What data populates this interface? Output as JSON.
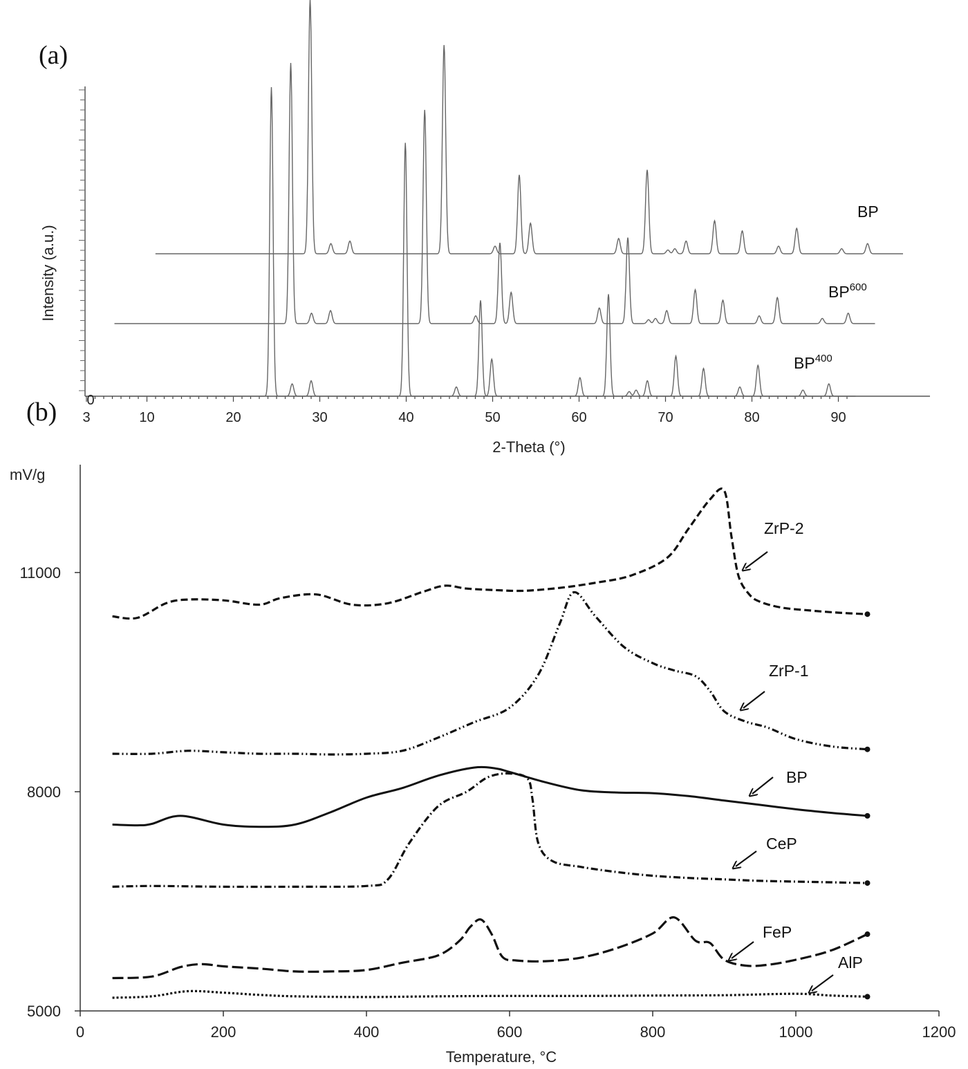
{
  "chart_data": [
    {
      "panel": "(a)",
      "type": "line",
      "xlabel": "2-Theta (°)",
      "ylabel": "Intensity (a.u.)",
      "xlim": [
        3,
        92
      ],
      "xticks": [
        3,
        10,
        20,
        30,
        40,
        50,
        60,
        70,
        80,
        90
      ],
      "y_origin_label": "0",
      "series": [
        {
          "name": "BP",
          "label_base": "BP",
          "label_sup": "",
          "peaks": [
            [
              24.4,
              1.0
            ],
            [
              26.8,
              0.04
            ],
            [
              29.0,
              0.05
            ],
            [
              39.9,
              0.82
            ],
            [
              45.8,
              0.03
            ],
            [
              48.6,
              0.31
            ],
            [
              49.9,
              0.12
            ],
            [
              60.1,
              0.06
            ],
            [
              63.4,
              0.33
            ],
            [
              65.8,
              0.015
            ],
            [
              66.6,
              0.02
            ],
            [
              67.9,
              0.05
            ],
            [
              71.2,
              0.13
            ],
            [
              74.4,
              0.09
            ],
            [
              78.6,
              0.03
            ],
            [
              80.7,
              0.1
            ],
            [
              85.9,
              0.02
            ],
            [
              88.9,
              0.04
            ]
          ]
        },
        {
          "name": "BP600",
          "label_base": "BP",
          "label_sup": "600",
          "peaks": [
            [
              24.4,
              1.0
            ],
            [
              26.8,
              0.04
            ],
            [
              29.0,
              0.05
            ],
            [
              39.9,
              0.82
            ],
            [
              45.8,
              0.03
            ],
            [
              48.6,
              0.31
            ],
            [
              49.9,
              0.12
            ],
            [
              60.1,
              0.06
            ],
            [
              63.4,
              0.33
            ],
            [
              65.8,
              0.015
            ],
            [
              66.6,
              0.02
            ],
            [
              67.9,
              0.05
            ],
            [
              71.2,
              0.13
            ],
            [
              74.4,
              0.09
            ],
            [
              78.6,
              0.03
            ],
            [
              80.7,
              0.1
            ],
            [
              85.9,
              0.02
            ],
            [
              88.9,
              0.04
            ]
          ]
        },
        {
          "name": "BP400",
          "label_base": "BP",
          "label_sup": "400",
          "peaks": [
            [
              24.4,
              1.0
            ],
            [
              26.8,
              0.04
            ],
            [
              29.0,
              0.05
            ],
            [
              39.9,
              0.82
            ],
            [
              45.8,
              0.03
            ],
            [
              48.6,
              0.31
            ],
            [
              49.9,
              0.12
            ],
            [
              60.1,
              0.06
            ],
            [
              63.4,
              0.33
            ],
            [
              65.8,
              0.015
            ],
            [
              66.6,
              0.02
            ],
            [
              67.9,
              0.05
            ],
            [
              71.2,
              0.13
            ],
            [
              74.4,
              0.09
            ],
            [
              78.6,
              0.03
            ],
            [
              80.7,
              0.1
            ],
            [
              85.9,
              0.02
            ],
            [
              88.9,
              0.04
            ]
          ]
        }
      ]
    },
    {
      "panel": "(b)",
      "type": "line",
      "xlabel": "Temperature, °C",
      "ylabel": "mV/g",
      "xlim": [
        0,
        1200
      ],
      "ylim": [
        5000,
        12500
      ],
      "xticks": [
        0,
        200,
        400,
        600,
        800,
        1000,
        1200
      ],
      "yticks": [
        5000,
        8000,
        11000
      ],
      "series": [
        {
          "name": "ZrP-2",
          "style": "dash",
          "x": [
            45,
            80,
            120,
            150,
            200,
            250,
            280,
            330,
            380,
            430,
            480,
            510,
            540,
            580,
            620,
            670,
            720,
            770,
            820,
            850,
            880,
            900,
            910,
            920,
            935,
            950,
            980,
            1020,
            1060,
            1100
          ],
          "y": [
            10400,
            10380,
            10580,
            10630,
            10620,
            10560,
            10650,
            10700,
            10560,
            10580,
            10740,
            10820,
            10780,
            10760,
            10750,
            10790,
            10860,
            10960,
            11200,
            11600,
            12000,
            12120,
            11500,
            10950,
            10700,
            10600,
            10520,
            10480,
            10450,
            10430
          ]
        },
        {
          "name": "ZrP-1",
          "style": "dashdotdot",
          "x": [
            45,
            100,
            150,
            200,
            250,
            300,
            350,
            400,
            450,
            500,
            550,
            600,
            640,
            670,
            690,
            720,
            760,
            800,
            830,
            860,
            880,
            900,
            930,
            960,
            1000,
            1050,
            1100
          ],
          "y": [
            8520,
            8520,
            8560,
            8540,
            8520,
            8520,
            8510,
            8520,
            8560,
            8740,
            8950,
            9150,
            9600,
            10300,
            10730,
            10400,
            9980,
            9760,
            9660,
            9580,
            9380,
            9100,
            8960,
            8880,
            8720,
            8620,
            8580
          ]
        },
        {
          "name": "BP",
          "style": "solid",
          "x": [
            45,
            80,
            100,
            140,
            200,
            250,
            300,
            350,
            400,
            450,
            500,
            550,
            580,
            600,
            650,
            700,
            750,
            800,
            850,
            900,
            950,
            1000,
            1050,
            1100
          ],
          "y": [
            7550,
            7540,
            7560,
            7670,
            7550,
            7520,
            7550,
            7720,
            7920,
            8050,
            8220,
            8330,
            8320,
            8270,
            8130,
            8020,
            7990,
            7980,
            7940,
            7880,
            7820,
            7760,
            7710,
            7670
          ]
        },
        {
          "name": "CeP",
          "style": "dashdot",
          "x": [
            45,
            100,
            200,
            300,
            400,
            430,
            460,
            500,
            540,
            570,
            600,
            625,
            632,
            640,
            660,
            700,
            750,
            800,
            850,
            900,
            950,
            1000,
            1050,
            1100
          ],
          "y": [
            6700,
            6710,
            6700,
            6700,
            6710,
            6800,
            7300,
            7800,
            8000,
            8200,
            8250,
            8180,
            7900,
            7300,
            7050,
            6970,
            6900,
            6850,
            6820,
            6800,
            6780,
            6770,
            6760,
            6750
          ]
        },
        {
          "name": "FeP",
          "style": "longdash",
          "x": [
            45,
            100,
            140,
            170,
            200,
            250,
            300,
            350,
            400,
            450,
            500,
            530,
            545,
            560,
            575,
            590,
            610,
            650,
            700,
            750,
            800,
            830,
            860,
            880,
            900,
            930,
            960,
            1000,
            1050,
            1100
          ],
          "y": [
            5450,
            5470,
            5600,
            5640,
            5610,
            5580,
            5540,
            5540,
            5560,
            5660,
            5760,
            5960,
            6150,
            6250,
            6050,
            5740,
            5690,
            5680,
            5730,
            5860,
            6060,
            6280,
            5960,
            5930,
            5700,
            5620,
            5630,
            5700,
            5830,
            6050
          ]
        },
        {
          "name": "AlP",
          "style": "dotted",
          "x": [
            45,
            100,
            150,
            200,
            250,
            300,
            400,
            500,
            600,
            700,
            800,
            900,
            1000,
            1050,
            1100
          ],
          "y": [
            5180,
            5200,
            5270,
            5250,
            5220,
            5200,
            5190,
            5200,
            5205,
            5205,
            5210,
            5215,
            5235,
            5210,
            5195
          ]
        }
      ]
    }
  ]
}
